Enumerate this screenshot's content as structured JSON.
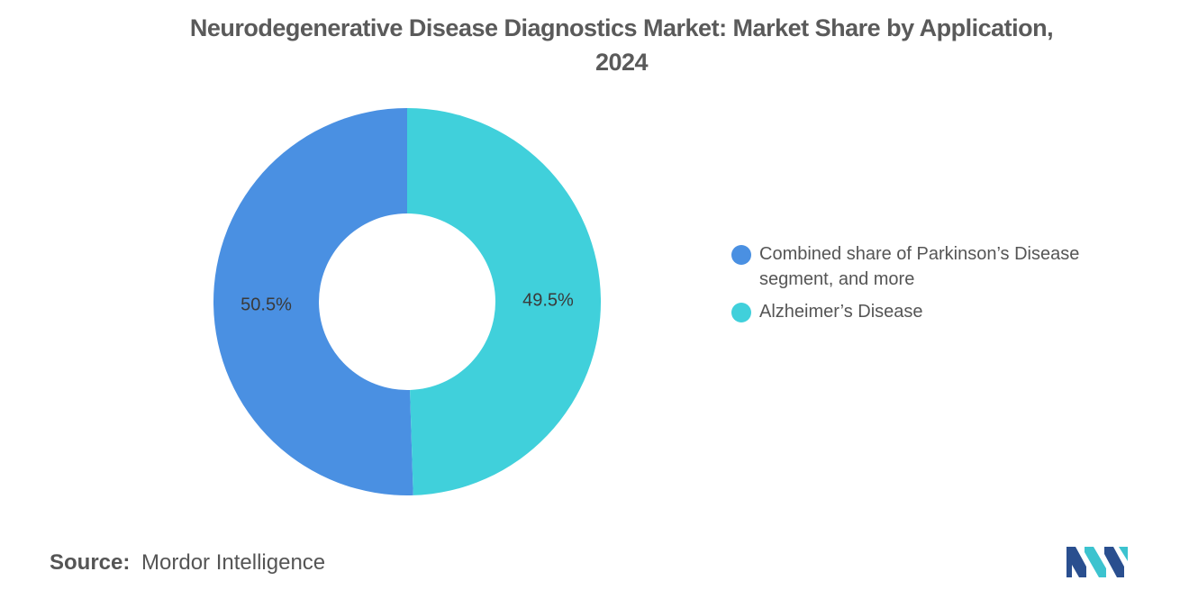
{
  "title": {
    "line1": "Neurodegenerative Disease Diagnostics Market: Market Share by Application,",
    "line2": "2024"
  },
  "chart_data": {
    "type": "pie",
    "variant": "donut",
    "title": "Neurodegenerative Disease Diagnostics Market: Market Share by Application, 2024",
    "categories": [
      "Combined share of Parkinson’s Disease segment, and more",
      "Alzheimer’s Disease"
    ],
    "values": [
      50.5,
      49.5
    ],
    "value_labels": [
      "50.5%",
      "49.5%"
    ],
    "colors": [
      "#4a90e2",
      "#40d0db"
    ],
    "legend_position": "right"
  },
  "legend": {
    "items": [
      {
        "line1": "Combined share of Parkinson’s Disease",
        "line2": "segment, and more",
        "color": "#4a90e2"
      },
      {
        "line1": "Alzheimer’s Disease",
        "line2": "",
        "color": "#40d0db"
      }
    ]
  },
  "source": {
    "label": "Source:",
    "text": "Mordor Intelligence"
  },
  "logo": {
    "icon": "mordor-intelligence-logo",
    "colors": [
      "#2a4f8f",
      "#3cc3cf"
    ]
  }
}
